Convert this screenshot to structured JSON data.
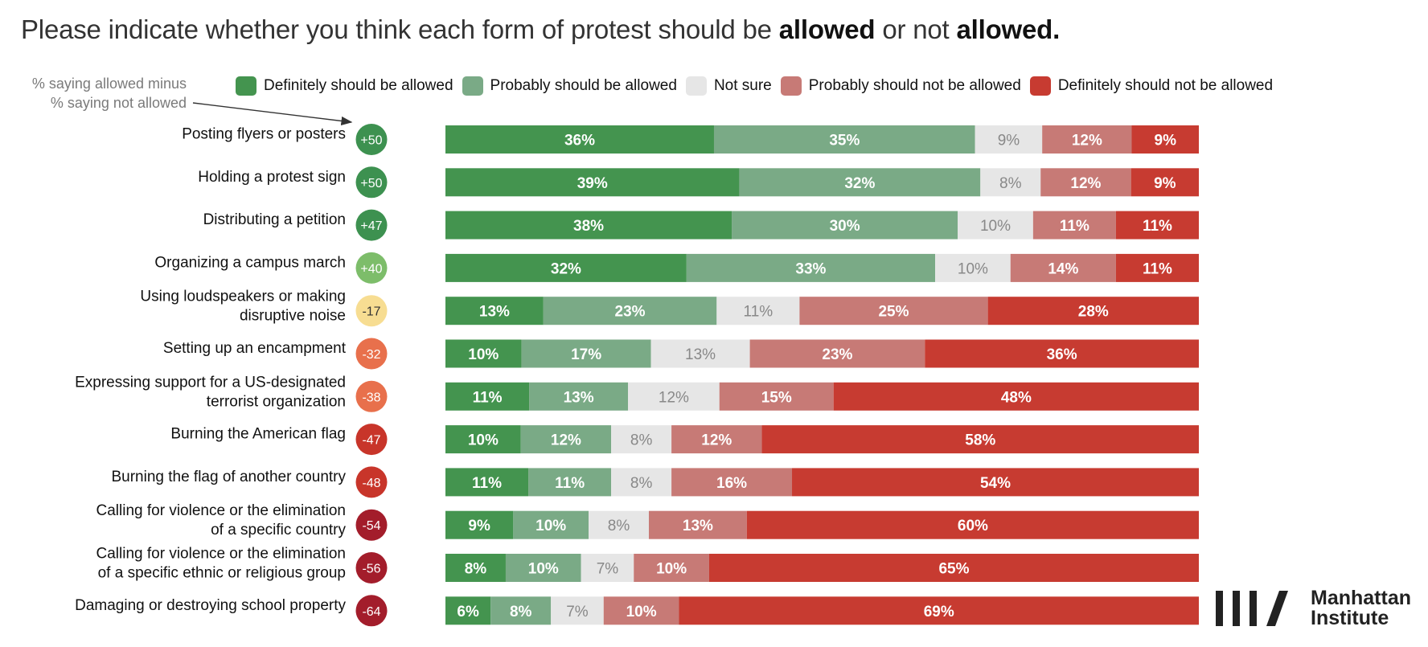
{
  "title": {
    "prefix": "Please indicate whether you think each form of protest should be ",
    "bold1": "allowed",
    "mid": " or not ",
    "bold2": "allowed."
  },
  "net_note": {
    "line1": "% saying allowed minus",
    "line2": "% saying not allowed"
  },
  "brand": {
    "line1": "Manhattan",
    "line2": "Institute"
  },
  "colors": {
    "definitely_allowed": "#44944f",
    "probably_allowed": "#7aaa86",
    "not_sure": "#e6e6e6",
    "probably_not_allowed": "#c77a76",
    "definitely_not_allowed": "#c73b31"
  },
  "chart_data": {
    "type": "bar",
    "orientation": "horizontal",
    "stacked": true,
    "x_range": [
      0,
      100
    ],
    "unit": "%",
    "legend_placement": "top",
    "categories": [
      "Posting flyers or posters",
      "Holding a protest sign",
      "Distributing a petition",
      "Organizing a campus march",
      "Using loudspeakers or making disruptive noise",
      "Setting up an encampment",
      "Expressing support for a US-designated terrorist organization",
      "Burning the American flag",
      "Burning the flag of another country",
      "Calling for violence or the elimination of a specific country",
      "Calling for violence or the elimination of a specific ethnic or religious group",
      "Damaging or destroying school property"
    ],
    "category_lines": [
      [
        "Posting flyers or posters"
      ],
      [
        "Holding a protest sign"
      ],
      [
        "Distributing a petition"
      ],
      [
        "Organizing a campus march"
      ],
      [
        "Using loudspeakers or making",
        "disruptive noise"
      ],
      [
        "Setting up an encampment"
      ],
      [
        "Expressing support for a US-designated",
        "terrorist organization"
      ],
      [
        "Burning the American flag"
      ],
      [
        "Burning the flag of another country"
      ],
      [
        "Calling for violence or the elimination",
        "of a specific country"
      ],
      [
        "Calling for violence or the elimination",
        "of a specific ethnic or religious group"
      ],
      [
        "Damaging or destroying school property"
      ]
    ],
    "net": [
      "+50",
      "+50",
      "+47",
      "+40",
      "-17",
      "-32",
      "-38",
      "-47",
      "-48",
      "-54",
      "-56",
      "-64"
    ],
    "net_colors": [
      "#3d9150",
      "#3d9150",
      "#3d9150",
      "#7dbd6a",
      "#f7dd92",
      "#e8704c",
      "#e8704c",
      "#c8352a",
      "#c8352a",
      "#a31d2b",
      "#a31d2b",
      "#a31d2b"
    ],
    "series": [
      {
        "name": "Definitely should be allowed",
        "color": "#44944f",
        "values": [
          36,
          39,
          38,
          32,
          13,
          10,
          11,
          10,
          11,
          9,
          8,
          6
        ]
      },
      {
        "name": "Probably should be allowed",
        "color": "#7aaa86",
        "values": [
          35,
          32,
          30,
          33,
          23,
          17,
          13,
          12,
          11,
          10,
          10,
          8
        ]
      },
      {
        "name": "Not sure",
        "color": "#e6e6e6",
        "values": [
          9,
          8,
          10,
          10,
          11,
          13,
          12,
          8,
          8,
          8,
          7,
          7
        ]
      },
      {
        "name": "Probably should not be allowed",
        "color": "#c77a76",
        "values": [
          12,
          12,
          11,
          14,
          25,
          23,
          15,
          12,
          16,
          13,
          10,
          10
        ]
      },
      {
        "name": "Definitely should not be allowed",
        "color": "#c73b31",
        "values": [
          9,
          9,
          11,
          11,
          28,
          36,
          48,
          58,
          54,
          60,
          65,
          69
        ]
      }
    ]
  }
}
